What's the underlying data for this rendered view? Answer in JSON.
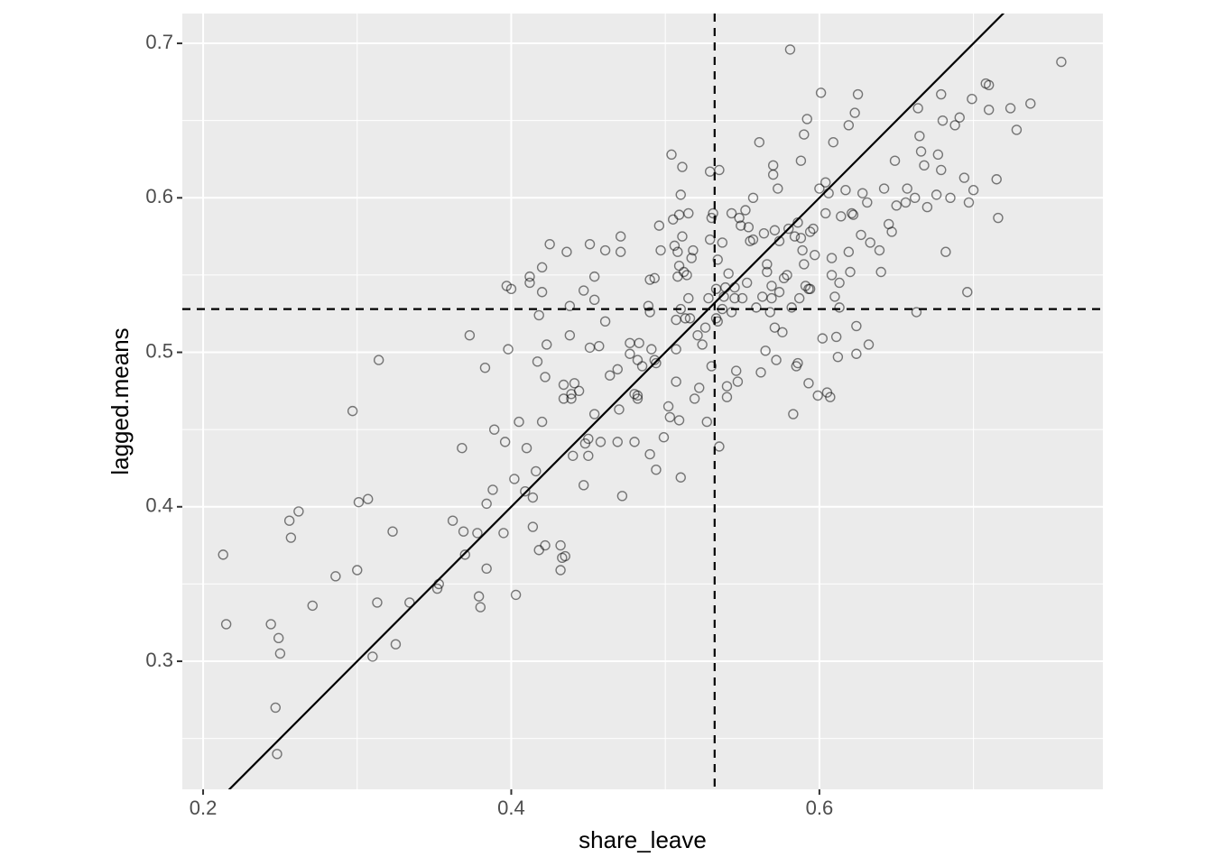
{
  "chart_data": {
    "type": "scatter",
    "x_label": "share_leave",
    "y_label": "lagged.means",
    "xlim": [
      0.1865,
      0.784
    ],
    "ylim": [
      0.2171,
      0.7193
    ],
    "xticks": [
      0.2,
      0.4,
      0.6
    ],
    "yticks": [
      0.3,
      0.4,
      0.5,
      0.6,
      0.7
    ],
    "grid": true,
    "point_color": "#000000",
    "vline": 0.532,
    "hline": 0.528,
    "abline": {
      "slope": 1,
      "intercept": 0
    },
    "x": [
      0.213,
      0.215,
      0.244,
      0.249,
      0.25,
      0.247,
      0.248,
      0.256,
      0.257,
      0.262,
      0.271,
      0.286,
      0.3,
      0.297,
      0.301,
      0.307,
      0.313,
      0.31,
      0.314,
      0.323,
      0.325,
      0.334,
      0.352,
      0.353,
      0.362,
      0.368,
      0.369,
      0.37,
      0.373,
      0.378,
      0.379,
      0.38,
      0.383,
      0.384,
      0.384,
      0.388,
      0.389,
      0.395,
      0.396,
      0.397,
      0.398,
      0.4,
      0.402,
      0.403,
      0.405,
      0.409,
      0.41,
      0.412,
      0.412,
      0.414,
      0.414,
      0.416,
      0.417,
      0.418,
      0.418,
      0.42,
      0.42,
      0.42,
      0.422,
      0.422,
      0.423,
      0.425,
      0.432,
      0.432,
      0.433,
      0.434,
      0.434,
      0.435,
      0.436,
      0.438,
      0.438,
      0.439,
      0.439,
      0.44,
      0.441,
      0.444,
      0.447,
      0.447,
      0.448,
      0.45,
      0.45,
      0.451,
      0.451,
      0.454,
      0.454,
      0.454,
      0.457,
      0.458,
      0.461,
      0.461,
      0.464,
      0.469,
      0.47,
      0.469,
      0.471,
      0.471,
      0.472,
      0.477,
      0.477,
      0.48,
      0.48,
      0.482,
      0.482,
      0.482,
      0.483,
      0.485,
      0.489,
      0.49,
      0.49,
      0.49,
      0.491,
      0.493,
      0.493,
      0.494,
      0.494,
      0.496,
      0.497,
      0.499,
      0.502,
      0.503,
      0.504,
      0.505,
      0.506,
      0.507,
      0.507,
      0.507,
      0.508,
      0.508,
      0.509,
      0.509,
      0.509,
      0.51,
      0.51,
      0.511,
      0.51,
      0.511,
      0.512,
      0.513,
      0.514,
      0.515,
      0.515,
      0.516,
      0.517,
      0.518,
      0.519,
      0.521,
      0.522,
      0.524,
      0.526,
      0.527,
      0.528,
      0.529,
      0.529,
      0.53,
      0.53,
      0.531,
      0.533,
      0.533,
      0.534,
      0.534,
      0.535,
      0.535,
      0.537,
      0.537,
      0.538,
      0.539,
      0.54,
      0.54,
      0.541,
      0.543,
      0.543,
      0.545,
      0.545,
      0.546,
      0.547,
      0.548,
      0.549,
      0.55,
      0.552,
      0.553,
      0.554,
      0.555,
      0.557,
      0.557,
      0.559,
      0.561,
      0.562,
      0.563,
      0.564,
      0.565,
      0.566,
      0.566,
      0.568,
      0.569,
      0.569,
      0.57,
      0.57,
      0.571,
      0.571,
      0.572,
      0.573,
      0.574,
      0.574,
      0.576,
      0.577,
      0.579,
      0.58,
      0.581,
      0.582,
      0.583,
      0.584,
      0.585,
      0.586,
      0.586,
      0.587,
      0.588,
      0.588,
      0.589,
      0.59,
      0.59,
      0.591,
      0.592,
      0.593,
      0.593,
      0.594,
      0.594,
      0.596,
      0.597,
      0.599,
      0.6,
      0.601,
      0.602,
      0.604,
      0.604,
      0.605,
      0.606,
      0.607,
      0.608,
      0.608,
      0.609,
      0.61,
      0.611,
      0.612,
      0.613,
      0.613,
      0.614,
      0.617,
      0.619,
      0.619,
      0.62,
      0.621,
      0.622,
      0.623,
      0.624,
      0.624,
      0.625,
      0.627,
      0.628,
      0.631,
      0.632,
      0.633,
      0.639,
      0.64,
      0.642,
      0.645,
      0.647,
      0.649,
      0.65,
      0.656,
      0.657,
      0.662,
      0.663,
      0.664,
      0.665,
      0.666,
      0.668,
      0.67,
      0.676,
      0.677,
      0.679,
      0.679,
      0.68,
      0.682,
      0.685,
      0.688,
      0.691,
      0.694,
      0.697,
      0.696,
      0.699,
      0.7,
      0.708,
      0.71,
      0.71,
      0.715,
      0.716,
      0.724,
      0.728,
      0.737,
      0.757
    ],
    "y": [
      0.369,
      0.324,
      0.324,
      0.315,
      0.305,
      0.27,
      0.24,
      0.391,
      0.38,
      0.397,
      0.336,
      0.355,
      0.359,
      0.462,
      0.403,
      0.405,
      0.338,
      0.303,
      0.495,
      0.384,
      0.311,
      0.338,
      0.347,
      0.35,
      0.391,
      0.438,
      0.384,
      0.369,
      0.511,
      0.383,
      0.342,
      0.335,
      0.49,
      0.36,
      0.402,
      0.411,
      0.45,
      0.383,
      0.442,
      0.543,
      0.502,
      0.541,
      0.418,
      0.343,
      0.455,
      0.41,
      0.438,
      0.549,
      0.545,
      0.406,
      0.387,
      0.423,
      0.494,
      0.524,
      0.372,
      0.539,
      0.555,
      0.455,
      0.484,
      0.375,
      0.505,
      0.57,
      0.375,
      0.359,
      0.367,
      0.479,
      0.47,
      0.368,
      0.565,
      0.53,
      0.511,
      0.47,
      0.473,
      0.433,
      0.48,
      0.475,
      0.414,
      0.54,
      0.441,
      0.433,
      0.444,
      0.57,
      0.503,
      0.534,
      0.549,
      0.46,
      0.504,
      0.442,
      0.566,
      0.52,
      0.485,
      0.442,
      0.463,
      0.489,
      0.575,
      0.565,
      0.407,
      0.506,
      0.499,
      0.473,
      0.442,
      0.47,
      0.495,
      0.472,
      0.506,
      0.491,
      0.53,
      0.526,
      0.547,
      0.434,
      0.502,
      0.495,
      0.548,
      0.424,
      0.493,
      0.582,
      0.566,
      0.445,
      0.465,
      0.458,
      0.628,
      0.586,
      0.569,
      0.521,
      0.502,
      0.481,
      0.565,
      0.549,
      0.589,
      0.556,
      0.456,
      0.602,
      0.419,
      0.62,
      0.528,
      0.575,
      0.552,
      0.522,
      0.55,
      0.59,
      0.535,
      0.522,
      0.561,
      0.566,
      0.47,
      0.511,
      0.477,
      0.505,
      0.516,
      0.455,
      0.535,
      0.573,
      0.617,
      0.587,
      0.491,
      0.59,
      0.541,
      0.522,
      0.56,
      0.52,
      0.618,
      0.439,
      0.571,
      0.528,
      0.536,
      0.542,
      0.471,
      0.478,
      0.551,
      0.526,
      0.59,
      0.542,
      0.535,
      0.488,
      0.481,
      0.587,
      0.582,
      0.535,
      0.592,
      0.545,
      0.581,
      0.572,
      0.573,
      0.6,
      0.529,
      0.636,
      0.487,
      0.536,
      0.577,
      0.501,
      0.552,
      0.557,
      0.526,
      0.543,
      0.535,
      0.621,
      0.615,
      0.516,
      0.579,
      0.495,
      0.606,
      0.539,
      0.572,
      0.513,
      0.548,
      0.55,
      0.58,
      0.696,
      0.529,
      0.46,
      0.575,
      0.491,
      0.493,
      0.584,
      0.535,
      0.574,
      0.624,
      0.566,
      0.641,
      0.557,
      0.543,
      0.651,
      0.48,
      0.541,
      0.578,
      0.541,
      0.58,
      0.563,
      0.472,
      0.606,
      0.668,
      0.509,
      0.61,
      0.59,
      0.474,
      0.603,
      0.471,
      0.561,
      0.55,
      0.636,
      0.536,
      0.51,
      0.497,
      0.529,
      0.545,
      0.588,
      0.605,
      0.647,
      0.565,
      0.552,
      0.59,
      0.589,
      0.655,
      0.517,
      0.499,
      0.667,
      0.576,
      0.603,
      0.597,
      0.505,
      0.571,
      0.566,
      0.552,
      0.606,
      0.583,
      0.578,
      0.624,
      0.595,
      0.597,
      0.606,
      0.6,
      0.526,
      0.658,
      0.64,
      0.63,
      0.621,
      0.594,
      0.602,
      0.628,
      0.667,
      0.618,
      0.65,
      0.565,
      0.6,
      0.647,
      0.652,
      0.613,
      0.597,
      0.539,
      0.664,
      0.605,
      0.674,
      0.673,
      0.657,
      0.612,
      0.587,
      0.658,
      0.644,
      0.661,
      0.688
    ]
  }
}
